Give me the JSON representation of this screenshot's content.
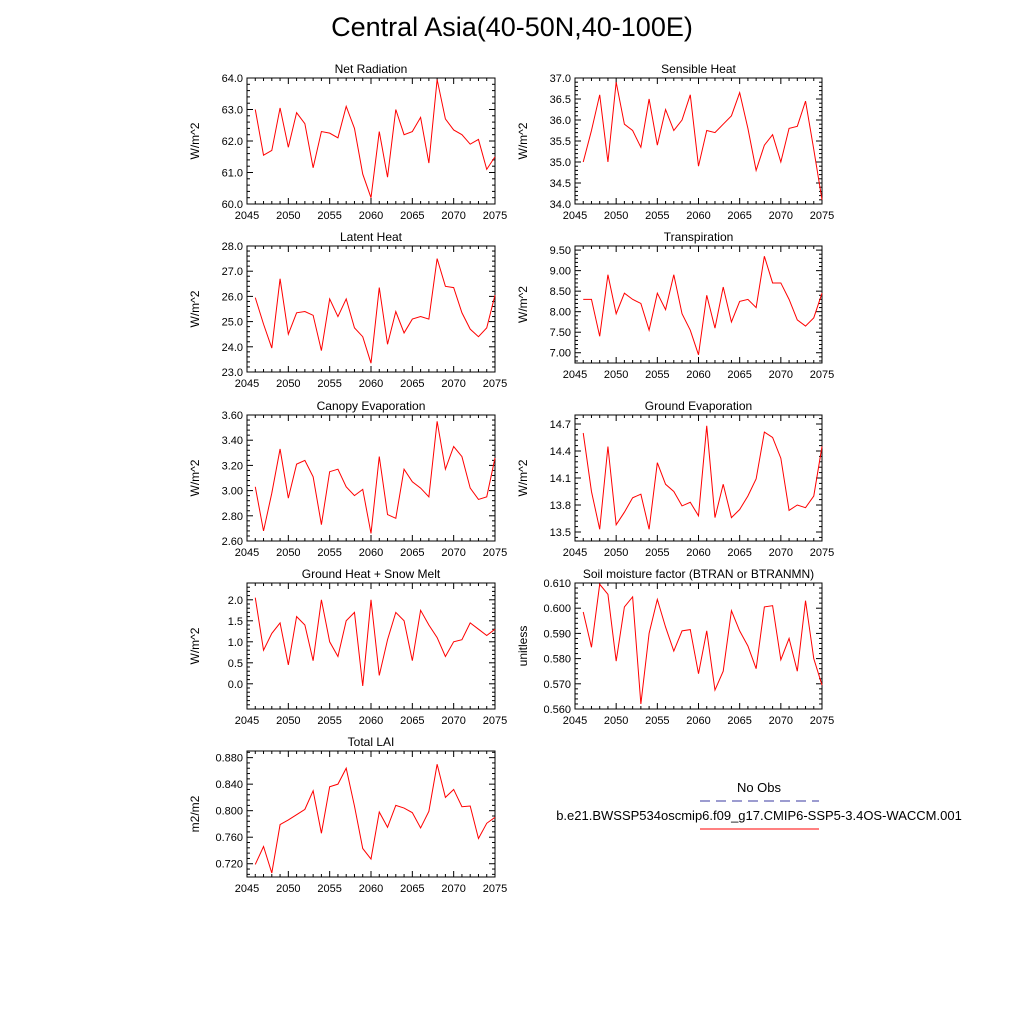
{
  "figure": {
    "title": "Central Asia(40-50N,40-100E)",
    "legend": {
      "obs_label": "No Obs",
      "model_label": "b.e21.BWSSP534oscmip6.f09_g17.CMIP6-SSP5-3.4OS-WACCM.001",
      "obs_color": "#3a3aa0",
      "model_color": "#ff0000"
    }
  },
  "chart_data": [
    {
      "type": "line",
      "title": "Net Radiation",
      "ylabel": "W/m^2",
      "xlabel": "",
      "xlim": [
        2045,
        2075
      ],
      "ylim": [
        60.0,
        64.0
      ],
      "xticks": [
        2045,
        2050,
        2055,
        2060,
        2065,
        2070,
        2075
      ],
      "yticks": [
        60.0,
        61.0,
        62.0,
        63.0,
        64.0
      ],
      "ytick_labels": [
        "60.0",
        "61.0",
        "62.0",
        "63.0",
        "64.0"
      ],
      "x": [
        2046,
        2047,
        2048,
        2049,
        2050,
        2051,
        2052,
        2053,
        2054,
        2055,
        2056,
        2057,
        2058,
        2059,
        2060,
        2061,
        2062,
        2063,
        2064,
        2065,
        2066,
        2067,
        2068,
        2069,
        2070,
        2071,
        2072,
        2073,
        2074,
        2075
      ],
      "series": [
        {
          "name": "b.e21.BWSSP534oscmip6.f09_g17.CMIP6-SSP5-3.4OS-WACCM.001",
          "color": "#ff0000",
          "values": [
            63.0,
            61.55,
            61.7,
            63.05,
            61.8,
            62.9,
            62.55,
            61.15,
            62.3,
            62.25,
            62.1,
            63.1,
            62.4,
            60.95,
            60.2,
            62.3,
            60.85,
            63.0,
            62.2,
            62.3,
            62.75,
            61.3,
            63.95,
            62.7,
            62.35,
            62.2,
            61.9,
            62.05,
            61.1,
            61.5
          ]
        }
      ]
    },
    {
      "type": "line",
      "title": "Sensible Heat",
      "ylabel": "W/m^2",
      "xlabel": "",
      "xlim": [
        2045,
        2075
      ],
      "ylim": [
        34.0,
        37.0
      ],
      "xticks": [
        2045,
        2050,
        2055,
        2060,
        2065,
        2070,
        2075
      ],
      "yticks": [
        34.0,
        34.5,
        35.0,
        35.5,
        36.0,
        36.5,
        37.0
      ],
      "ytick_labels": [
        "34.0",
        "34.5",
        "35.0",
        "35.5",
        "36.0",
        "36.5",
        "37.0"
      ],
      "x": [
        2046,
        2047,
        2048,
        2049,
        2050,
        2051,
        2052,
        2053,
        2054,
        2055,
        2056,
        2057,
        2058,
        2059,
        2060,
        2061,
        2062,
        2063,
        2064,
        2065,
        2066,
        2067,
        2068,
        2069,
        2070,
        2071,
        2072,
        2073,
        2074,
        2075
      ],
      "series": [
        {
          "name": "b.e21.BWSSP534oscmip6.f09_g17.CMIP6-SSP5-3.4OS-WACCM.001",
          "color": "#ff0000",
          "values": [
            35.0,
            35.75,
            36.6,
            35.0,
            36.9,
            35.9,
            35.75,
            35.35,
            36.5,
            35.4,
            36.25,
            35.75,
            36.0,
            36.6,
            34.9,
            35.75,
            35.7,
            35.9,
            36.1,
            36.65,
            35.8,
            34.8,
            35.4,
            35.65,
            35.0,
            35.8,
            35.85,
            36.45,
            35.3,
            34.1
          ]
        }
      ]
    },
    {
      "type": "line",
      "title": "Latent Heat",
      "ylabel": "W/m^2",
      "xlabel": "",
      "xlim": [
        2045,
        2075
      ],
      "ylim": [
        23.0,
        28.0
      ],
      "xticks": [
        2045,
        2050,
        2055,
        2060,
        2065,
        2070,
        2075
      ],
      "yticks": [
        23.0,
        24.0,
        25.0,
        26.0,
        27.0,
        28.0
      ],
      "ytick_labels": [
        "23.0",
        "24.0",
        "25.0",
        "26.0",
        "27.0",
        "28.0"
      ],
      "x": [
        2046,
        2047,
        2048,
        2049,
        2050,
        2051,
        2052,
        2053,
        2054,
        2055,
        2056,
        2057,
        2058,
        2059,
        2060,
        2061,
        2062,
        2063,
        2064,
        2065,
        2066,
        2067,
        2068,
        2069,
        2070,
        2071,
        2072,
        2073,
        2074,
        2075
      ],
      "series": [
        {
          "name": "b.e21.BWSSP534oscmip6.f09_g17.CMIP6-SSP5-3.4OS-WACCM.001",
          "color": "#ff0000",
          "values": [
            25.95,
            24.9,
            23.95,
            26.7,
            24.5,
            25.35,
            25.4,
            25.25,
            23.85,
            25.9,
            25.2,
            25.9,
            24.75,
            24.4,
            23.35,
            26.35,
            24.1,
            25.4,
            24.55,
            25.1,
            25.2,
            25.1,
            27.5,
            26.4,
            26.35,
            25.35,
            24.7,
            24.4,
            24.75,
            26.05
          ]
        }
      ]
    },
    {
      "type": "line",
      "title": "Transpiration",
      "ylabel": "W/m^2",
      "xlabel": "",
      "xlim": [
        2045,
        2075
      ],
      "ylim": [
        6.75,
        9.6
      ],
      "xticks": [
        2045,
        2050,
        2055,
        2060,
        2065,
        2070,
        2075
      ],
      "yticks": [
        7.0,
        7.5,
        8.0,
        8.5,
        9.0,
        9.5
      ],
      "ytick_labels": [
        "7.00",
        "7.50",
        "8.00",
        "8.50",
        "9.00",
        "9.50"
      ],
      "x": [
        2046,
        2047,
        2048,
        2049,
        2050,
        2051,
        2052,
        2053,
        2054,
        2055,
        2056,
        2057,
        2058,
        2059,
        2060,
        2061,
        2062,
        2063,
        2064,
        2065,
        2066,
        2067,
        2068,
        2069,
        2070,
        2071,
        2072,
        2073,
        2074,
        2075
      ],
      "series": [
        {
          "name": "b.e21.BWSSP534oscmip6.f09_g17.CMIP6-SSP5-3.4OS-WACCM.001",
          "color": "#ff0000",
          "values": [
            8.3,
            8.3,
            7.4,
            8.9,
            7.95,
            8.45,
            8.3,
            8.2,
            7.55,
            8.45,
            8.05,
            8.9,
            7.95,
            7.55,
            6.95,
            8.4,
            7.6,
            8.6,
            7.75,
            8.25,
            8.3,
            8.1,
            9.35,
            8.7,
            8.7,
            8.3,
            7.8,
            7.65,
            7.85,
            8.45
          ]
        }
      ]
    },
    {
      "type": "line",
      "title": "Canopy Evaporation",
      "ylabel": "W/m^2",
      "xlabel": "",
      "xlim": [
        2045,
        2075
      ],
      "ylim": [
        2.6,
        3.6
      ],
      "xticks": [
        2045,
        2050,
        2055,
        2060,
        2065,
        2070,
        2075
      ],
      "yticks": [
        2.6,
        2.8,
        3.0,
        3.2,
        3.4,
        3.6
      ],
      "ytick_labels": [
        "2.60",
        "2.80",
        "3.00",
        "3.20",
        "3.40",
        "3.60"
      ],
      "x": [
        2046,
        2047,
        2048,
        2049,
        2050,
        2051,
        2052,
        2053,
        2054,
        2055,
        2056,
        2057,
        2058,
        2059,
        2060,
        2061,
        2062,
        2063,
        2064,
        2065,
        2066,
        2067,
        2068,
        2069,
        2070,
        2071,
        2072,
        2073,
        2074,
        2075
      ],
      "series": [
        {
          "name": "b.e21.BWSSP534oscmip6.f09_g17.CMIP6-SSP5-3.4OS-WACCM.001",
          "color": "#ff0000",
          "values": [
            3.03,
            2.68,
            2.98,
            3.33,
            2.94,
            3.21,
            3.24,
            3.11,
            2.73,
            3.15,
            3.17,
            3.03,
            2.96,
            3.01,
            2.66,
            3.27,
            2.81,
            2.78,
            3.17,
            3.07,
            3.02,
            2.95,
            3.55,
            3.17,
            3.35,
            3.27,
            3.02,
            2.93,
            2.95,
            3.26
          ]
        }
      ]
    },
    {
      "type": "line",
      "title": "Ground Evaporation",
      "ylabel": "W/m^2",
      "xlabel": "",
      "xlim": [
        2045,
        2075
      ],
      "ylim": [
        13.4,
        14.8
      ],
      "xticks": [
        2045,
        2050,
        2055,
        2060,
        2065,
        2070,
        2075
      ],
      "yticks": [
        13.5,
        13.8,
        14.1,
        14.4,
        14.7
      ],
      "ytick_labels": [
        "13.5",
        "13.8",
        "14.1",
        "14.4",
        "14.7"
      ],
      "x": [
        2046,
        2047,
        2048,
        2049,
        2050,
        2051,
        2052,
        2053,
        2054,
        2055,
        2056,
        2057,
        2058,
        2059,
        2060,
        2061,
        2062,
        2063,
        2064,
        2065,
        2066,
        2067,
        2068,
        2069,
        2070,
        2071,
        2072,
        2073,
        2074,
        2075
      ],
      "series": [
        {
          "name": "b.e21.BWSSP534oscmip6.f09_g17.CMIP6-SSP5-3.4OS-WACCM.001",
          "color": "#ff0000",
          "values": [
            14.6,
            13.95,
            13.53,
            14.45,
            13.58,
            13.72,
            13.88,
            13.92,
            13.53,
            14.27,
            14.03,
            13.95,
            13.79,
            13.83,
            13.68,
            14.68,
            13.66,
            14.03,
            13.66,
            13.75,
            13.9,
            14.09,
            14.61,
            14.55,
            14.32,
            13.74,
            13.8,
            13.77,
            13.9,
            14.45
          ]
        }
      ]
    },
    {
      "type": "line",
      "title": "Ground Heat + Snow Melt",
      "ylabel": "W/m^2",
      "xlabel": "",
      "xlim": [
        2045,
        2075
      ],
      "ylim": [
        -0.6,
        2.4
      ],
      "xticks": [
        2045,
        2050,
        2055,
        2060,
        2065,
        2070,
        2075
      ],
      "yticks": [
        0.0,
        0.5,
        1.0,
        1.5,
        2.0
      ],
      "ytick_labels": [
        "0.0",
        "0.5",
        "1.0",
        "1.5",
        "2.0"
      ],
      "x": [
        2046,
        2047,
        2048,
        2049,
        2050,
        2051,
        2052,
        2053,
        2054,
        2055,
        2056,
        2057,
        2058,
        2059,
        2060,
        2061,
        2062,
        2063,
        2064,
        2065,
        2066,
        2067,
        2068,
        2069,
        2070,
        2071,
        2072,
        2073,
        2074,
        2075
      ],
      "series": [
        {
          "name": "b.e21.BWSSP534oscmip6.f09_g17.CMIP6-SSP5-3.4OS-WACCM.001",
          "color": "#ff0000",
          "values": [
            2.05,
            0.8,
            1.2,
            1.45,
            0.45,
            1.6,
            1.4,
            0.55,
            2.0,
            1.0,
            0.65,
            1.5,
            1.7,
            -0.05,
            2.0,
            0.2,
            1.05,
            1.7,
            1.5,
            0.55,
            1.75,
            1.4,
            1.1,
            0.65,
            1.0,
            1.05,
            1.45,
            1.3,
            1.15,
            1.3
          ]
        }
      ]
    },
    {
      "type": "line",
      "title": "Soil moisture factor (BTRAN or BTRANMN)",
      "ylabel": "unitless",
      "xlabel": "",
      "xlim": [
        2045,
        2075
      ],
      "ylim": [
        0.56,
        0.61
      ],
      "xticks": [
        2045,
        2050,
        2055,
        2060,
        2065,
        2070,
        2075
      ],
      "yticks": [
        0.56,
        0.57,
        0.58,
        0.59,
        0.6,
        0.61
      ],
      "ytick_labels": [
        "0.560",
        "0.570",
        "0.580",
        "0.590",
        "0.600",
        "0.610"
      ],
      "x": [
        2046,
        2047,
        2048,
        2049,
        2050,
        2051,
        2052,
        2053,
        2054,
        2055,
        2056,
        2057,
        2058,
        2059,
        2060,
        2061,
        2062,
        2063,
        2064,
        2065,
        2066,
        2067,
        2068,
        2069,
        2070,
        2071,
        2072,
        2073,
        2074,
        2075
      ],
      "series": [
        {
          "name": "b.e21.BWSSP534oscmip6.f09_g17.CMIP6-SSP5-3.4OS-WACCM.001",
          "color": "#ff0000",
          "values": [
            0.5985,
            0.5845,
            0.6095,
            0.6055,
            0.579,
            0.6005,
            0.6045,
            0.562,
            0.59,
            0.6035,
            0.5925,
            0.583,
            0.591,
            0.5915,
            0.574,
            0.591,
            0.5675,
            0.575,
            0.599,
            0.591,
            0.585,
            0.576,
            0.6005,
            0.601,
            0.5795,
            0.588,
            0.575,
            0.603,
            0.58,
            0.5695
          ]
        }
      ]
    },
    {
      "type": "line",
      "title": "Total LAI",
      "ylabel": "m2/m2",
      "xlabel": "",
      "xlim": [
        2045,
        2075
      ],
      "ylim": [
        0.7,
        0.89
      ],
      "xticks": [
        2045,
        2050,
        2055,
        2060,
        2065,
        2070,
        2075
      ],
      "yticks": [
        0.72,
        0.76,
        0.8,
        0.84,
        0.88
      ],
      "ytick_labels": [
        "0.720",
        "0.760",
        "0.800",
        "0.840",
        "0.880"
      ],
      "x": [
        2046,
        2047,
        2048,
        2049,
        2050,
        2051,
        2052,
        2053,
        2054,
        2055,
        2056,
        2057,
        2058,
        2059,
        2060,
        2061,
        2062,
        2063,
        2064,
        2065,
        2066,
        2067,
        2068,
        2069,
        2070,
        2071,
        2072,
        2073,
        2074,
        2075
      ],
      "series": [
        {
          "name": "b.e21.BWSSP534oscmip6.f09_g17.CMIP6-SSP5-3.4OS-WACCM.001",
          "color": "#ff0000",
          "values": [
            0.719,
            0.746,
            0.706,
            0.779,
            0.786,
            0.794,
            0.802,
            0.83,
            0.766,
            0.836,
            0.84,
            0.864,
            0.807,
            0.743,
            0.727,
            0.798,
            0.775,
            0.808,
            0.804,
            0.797,
            0.774,
            0.799,
            0.87,
            0.82,
            0.832,
            0.806,
            0.807,
            0.758,
            0.781,
            0.79
          ]
        }
      ]
    }
  ]
}
